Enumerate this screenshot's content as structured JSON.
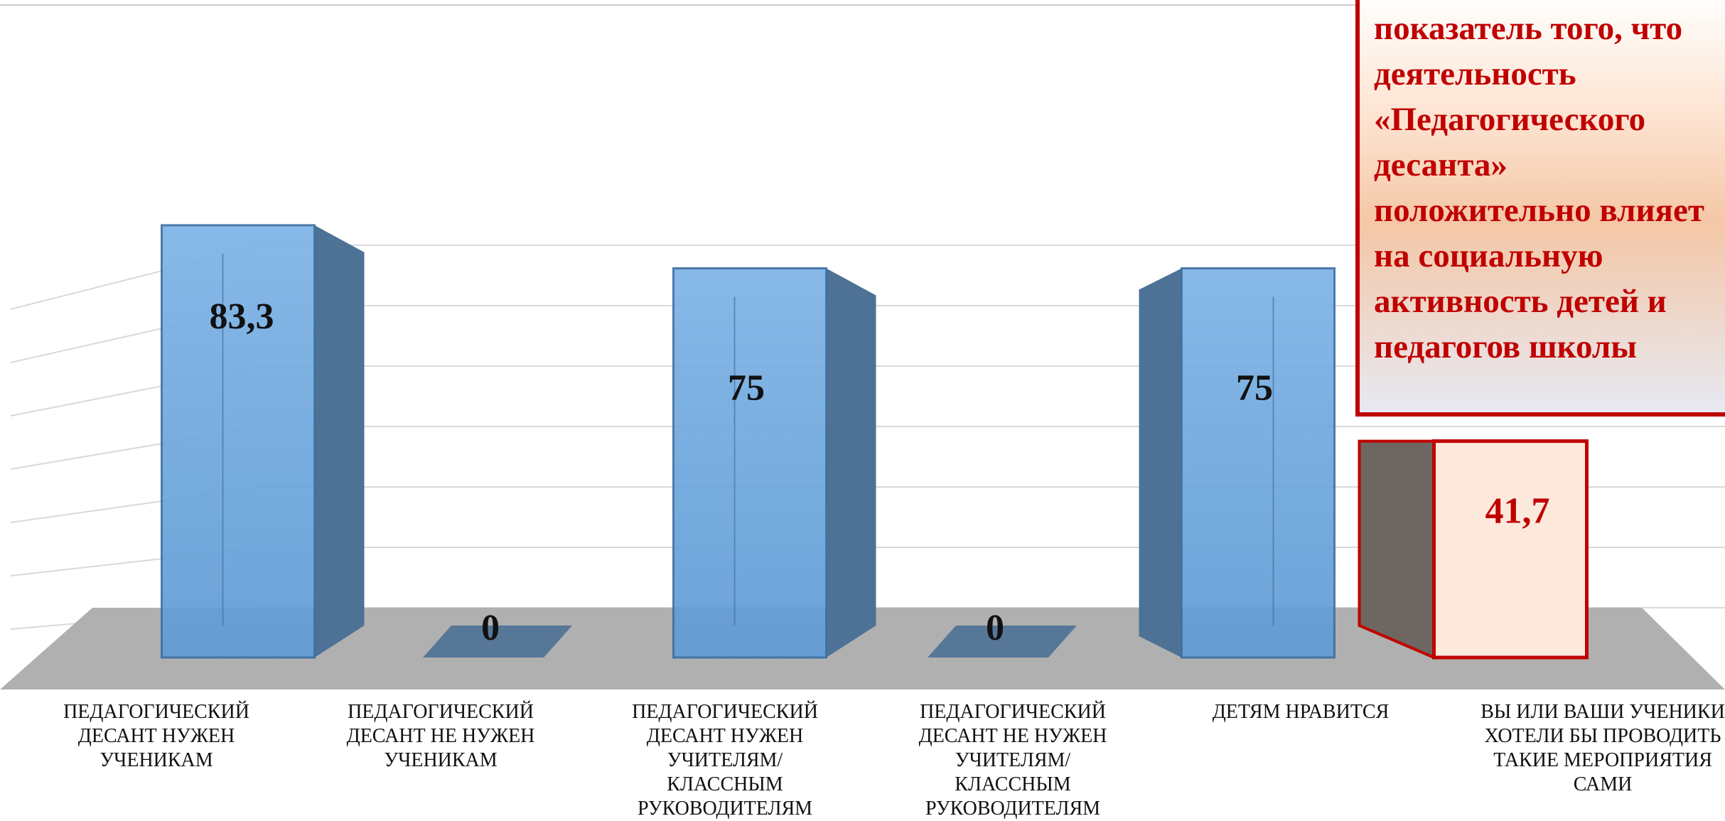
{
  "chart_data": {
    "type": "bar",
    "categories": [
      "ПЕДАГОГИЧЕСКИЙ ДЕСАНТ НУЖЕН УЧЕНИКАМ",
      "ПЕДАГОГИЧЕСКИЙ ДЕСАНТ НЕ НУЖЕН УЧЕНИКАМ",
      "ПЕДАГОГИЧЕСКИЙ ДЕСАНТ НУЖЕН УЧИТЕЛЯМ/КЛАССНЫМ РУКОВОДИТЕЛЯМ",
      "ПЕДАГОГИЧЕСКИЙ ДЕСАНТ НЕ НУЖЕН УЧИТЕЛЯМ/КЛАССНЫМ РУКОВОДИТЕЛЯМ",
      "ДЕТЯМ НРАВИТСЯ",
      "ВЫ ИЛИ ВАШИ УЧЕНИКИ ХОТЕЛИ БЫ ПРОВОДИТЬ ТАКИЕ МЕРОПРИЯТИЯ САМИ"
    ],
    "values": [
      83.3,
      0,
      75,
      0,
      75,
      41.7
    ],
    "data_labels": [
      "83,3",
      "0",
      "75",
      "0",
      "75",
      "41,7"
    ],
    "highlighted_index": 5,
    "ylim": [
      0,
      100
    ],
    "grid": true,
    "colors": {
      "bar_front": "#6fa8dc",
      "bar_side": "#4e7196",
      "bar_edge": "#3d6fa3",
      "highlight_border": "#c00000",
      "highlight_fill": "#fde8dc",
      "highlight_side": "#6e6660",
      "floor": "#b0b0b0",
      "gridline": "#d9d9d9",
      "label_highlight": "#c00000"
    }
  },
  "callout": {
    "text": "показатель того, что деятельность «Педагогического десанта» положительно влияет на социальную активность детей и педагогов школы"
  }
}
